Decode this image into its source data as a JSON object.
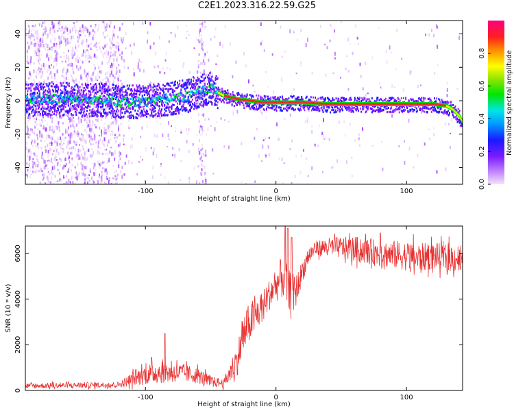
{
  "title": "C2E1.2023.316.22.59.G25",
  "colors": {
    "snr_line": "#e83030",
    "axis": "#000000",
    "colormap": [
      "#f0d8f8",
      "#9b30ff",
      "#1a1aff",
      "#00e5ff",
      "#00e600",
      "#ffff00",
      "#ff2020",
      "#ff0080"
    ]
  },
  "chart_data": [
    {
      "type": "heatmap",
      "name": "spectrogram",
      "xlabel": "Height of straight line (km)",
      "ylabel": "Frequency (Hz)",
      "xlim": [
        -192,
        143
      ],
      "ylim": [
        -50,
        48
      ],
      "xticks": [
        -100,
        0,
        100
      ],
      "yticks": [
        40,
        20,
        0,
        -20,
        -40
      ],
      "ridge": {
        "x": [
          -190,
          -170,
          -150,
          -130,
          -120,
          -110,
          -100,
          -90,
          -80,
          -70,
          -60,
          -50,
          -45,
          -40,
          -35,
          -30,
          -20,
          -10,
          0,
          10,
          20,
          40,
          60,
          80,
          100,
          120,
          130,
          135,
          140,
          143
        ],
        "freq": [
          1,
          2,
          1,
          1,
          0,
          0,
          0,
          1,
          2,
          3,
          6,
          8,
          5,
          3,
          2,
          1,
          0,
          -1,
          -1,
          -1,
          -1,
          -2,
          -2,
          -2,
          -2,
          -2,
          -3,
          -5,
          -9,
          -13
        ]
      },
      "colorbar": {
        "label": "Normalized spectral amplitude",
        "range": [
          0,
          1
        ],
        "ticks": [
          0.0,
          0.2,
          0.4,
          0.6,
          0.8
        ],
        "tick_labels": [
          "0.0",
          "0.2",
          "0.4",
          "0.6",
          "0.8"
        ]
      }
    },
    {
      "type": "line",
      "name": "snr",
      "xlabel": "Height of straight line (km)",
      "ylabel": "SNR (10 * v/v)",
      "xlim": [
        -192,
        143
      ],
      "ylim": [
        0,
        7200
      ],
      "xticks": [
        -100,
        0,
        100
      ],
      "yticks": [
        0,
        2000,
        4000,
        6000
      ],
      "series": [
        {
          "name": "SNR",
          "envelope_x": [
            -192,
            -120,
            -110,
            -100,
            -90,
            -80,
            -70,
            -60,
            -50,
            -40,
            -35,
            -30,
            -25,
            -20,
            -15,
            -10,
            -5,
            0,
            5,
            10,
            15,
            20,
            25,
            30,
            40,
            60,
            80,
            100,
            110,
            120,
            130,
            143
          ],
          "envelope_mean": [
            200,
            250,
            500,
            700,
            800,
            800,
            750,
            650,
            400,
            300,
            800,
            1300,
            2400,
            3000,
            3300,
            3700,
            4200,
            4600,
            5000,
            4400,
            4300,
            5200,
            5900,
            6200,
            6300,
            6200,
            6000,
            5900,
            5800,
            5900,
            5800,
            5800
          ],
          "envelope_spread": [
            120,
            130,
            300,
            450,
            500,
            450,
            400,
            350,
            250,
            180,
            500,
            700,
            900,
            900,
            800,
            700,
            700,
            700,
            1000,
            900,
            700,
            500,
            400,
            350,
            400,
            550,
            600,
            650,
            650,
            600,
            600,
            650
          ],
          "peaks": [
            {
              "x": -85,
              "y": 2500
            },
            {
              "x": 7,
              "y": 7200
            },
            {
              "x": 9,
              "y": 7100
            },
            {
              "x": 12,
              "y": 6700
            },
            {
              "x": 80,
              "y": 6900
            }
          ]
        }
      ]
    }
  ]
}
